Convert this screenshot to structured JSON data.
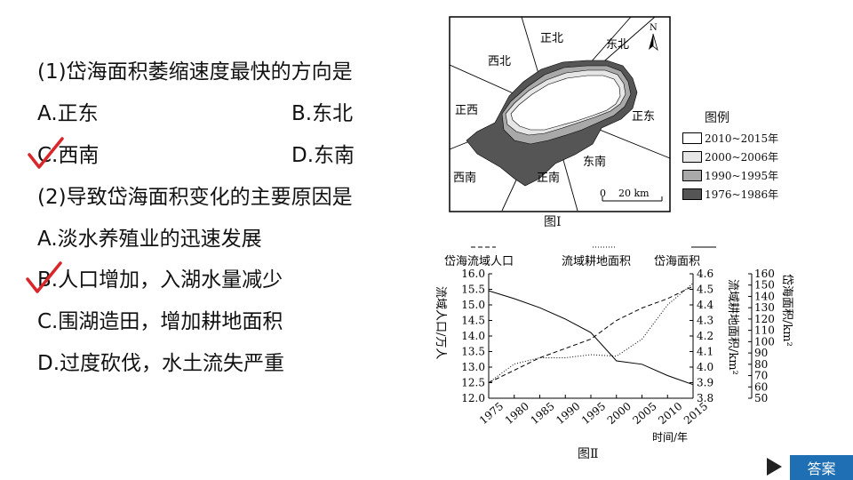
{
  "questions": {
    "q1": {
      "stem": "(1)岱海面积萎缩速度最快的方向是",
      "options": [
        "A.正东",
        "B.东北",
        "C.西南",
        "D.东南"
      ]
    },
    "q2": {
      "stem": "(2)导致岱海面积变化的主要原因是",
      "options": [
        "A.淡水养殖业的迅速发展",
        "B.人口增加，入湖水量减少",
        "C.围湖造田，增加耕地面积",
        "D.过度砍伐，水土流失严重"
      ]
    }
  },
  "map": {
    "north_label": "N",
    "directions": [
      "正北",
      "东北",
      "西北",
      "正西",
      "正东",
      "东南",
      "西南",
      "正南"
    ],
    "scale": "0    20 km",
    "legend_title": "图例",
    "legend": [
      {
        "label": "2010~2015年",
        "color": "#ffffff"
      },
      {
        "label": "2000~2006年",
        "color": "#e6e6e6"
      },
      {
        "label": "1990~1995年",
        "color": "#a9a9a9"
      },
      {
        "label": "1976~1986年",
        "color": "#555555"
      }
    ],
    "caption": "图Ⅰ"
  },
  "chart_data": {
    "type": "line",
    "caption": "图Ⅱ",
    "x": [
      1975,
      1980,
      1985,
      1990,
      1995,
      2000,
      2005,
      2010,
      2015
    ],
    "xlabel": "时间/年",
    "series": [
      {
        "name": "岱海流域人口",
        "axis": "left",
        "style": "dashed",
        "values": [
          12.5,
          12.9,
          13.3,
          13.6,
          13.9,
          14.5,
          14.9,
          15.2,
          15.6
        ]
      },
      {
        "name": "流域耕地面积",
        "axis": "middle",
        "style": "dotted",
        "values": [
          3.9,
          4.02,
          4.06,
          4.06,
          4.08,
          4.07,
          4.18,
          4.4,
          4.54
        ]
      },
      {
        "name": "岱海面积",
        "axis": "right",
        "style": "solid",
        "values": [
          145,
          138,
          130,
          120,
          108,
          83,
          80,
          70,
          62
        ]
      }
    ],
    "left_axis": {
      "label": "流域人口/万人",
      "ticks": [
        "12.0",
        "12.5",
        "13.0",
        "13.5",
        "14.0",
        "14.5",
        "15.0",
        "15.5",
        "16.0"
      ],
      "range": [
        12.0,
        16.0
      ]
    },
    "middle_axis": {
      "label": "流域耕地面积/km²",
      "ticks": [
        "3.8",
        "3.9",
        "4.0",
        "4.1",
        "4.2",
        "4.3",
        "4.4",
        "4.5",
        "4.6"
      ],
      "range": [
        3.8,
        4.6
      ]
    },
    "right_axis": {
      "label": "岱海面积/km²",
      "ticks": [
        "50",
        "60",
        "70",
        "80",
        "90",
        "100",
        "110",
        "120",
        "130",
        "140",
        "150",
        "160"
      ],
      "range": [
        50,
        160
      ]
    }
  },
  "button": {
    "answer_label": "答案"
  }
}
